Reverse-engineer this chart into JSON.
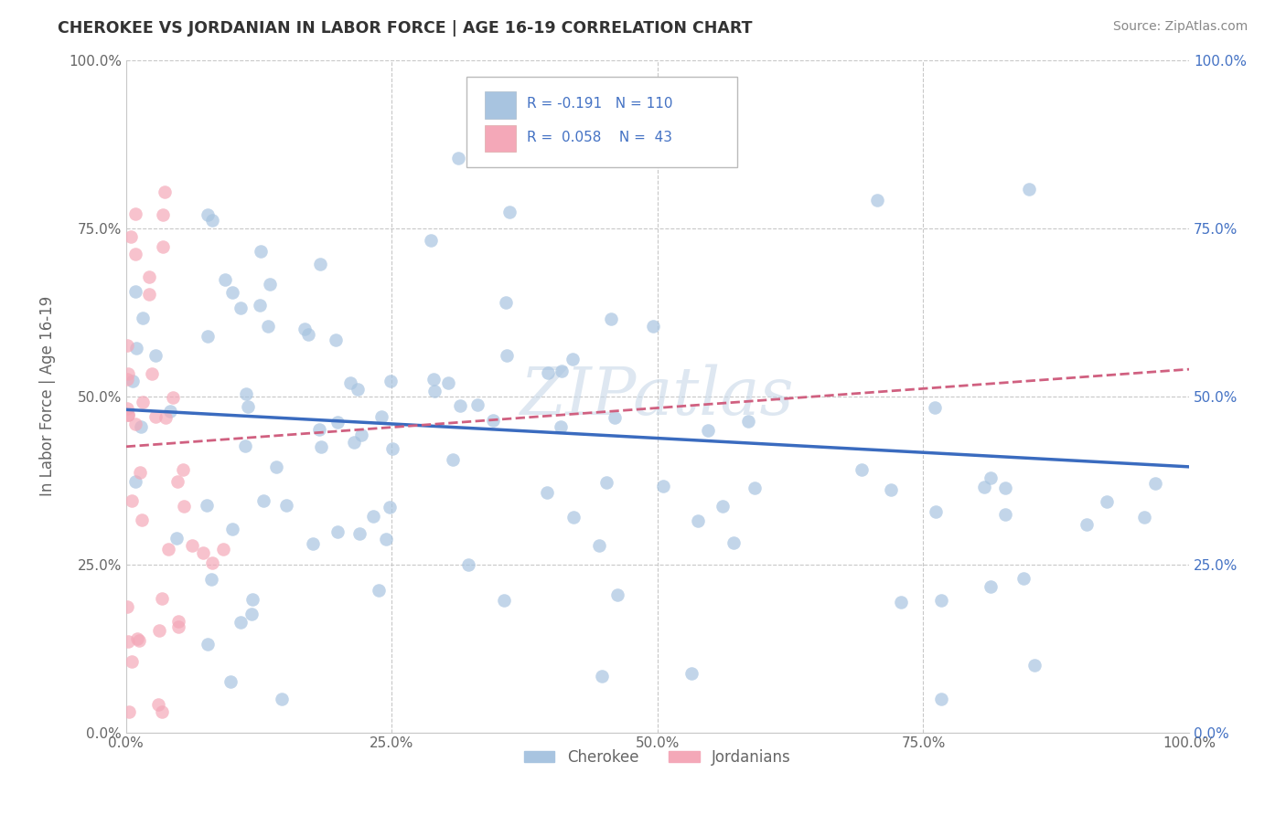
{
  "title": "CHEROKEE VS JORDANIAN IN LABOR FORCE | AGE 16-19 CORRELATION CHART",
  "source": "Source: ZipAtlas.com",
  "ylabel": "In Labor Force | Age 16-19",
  "xlim": [
    0.0,
    1.0
  ],
  "ylim": [
    0.0,
    1.0
  ],
  "xticks": [
    0.0,
    0.25,
    0.5,
    0.75,
    1.0
  ],
  "yticks": [
    0.0,
    0.25,
    0.5,
    0.75,
    1.0
  ],
  "xtick_labels": [
    "0.0%",
    "25.0%",
    "50.0%",
    "75.0%",
    "100.0%"
  ],
  "ytick_labels": [
    "0.0%",
    "25.0%",
    "50.0%",
    "75.0%",
    "100.0%"
  ],
  "right_ytick_labels": [
    "0.0%",
    "25.0%",
    "50.0%",
    "75.0%",
    "100.0%"
  ],
  "cherokee_color": "#a8c4e0",
  "jordanian_color": "#f4a8b8",
  "cherokee_line_color": "#3a6bbf",
  "jordanian_line_color": "#d06080",
  "cherokee_R": -0.191,
  "cherokee_N": 110,
  "jordanian_R": 0.058,
  "jordanian_N": 43,
  "background_color": "#ffffff",
  "grid_color": "#c8c8c8",
  "watermark": "ZIPatlas",
  "title_color": "#333333",
  "source_color": "#888888",
  "axis_color": "#666666",
  "right_axis_color": "#4472c4",
  "cherokee_line_y0": 0.48,
  "cherokee_line_y1": 0.395,
  "jordanian_line_y0": 0.425,
  "jordanian_line_y1": 0.54
}
